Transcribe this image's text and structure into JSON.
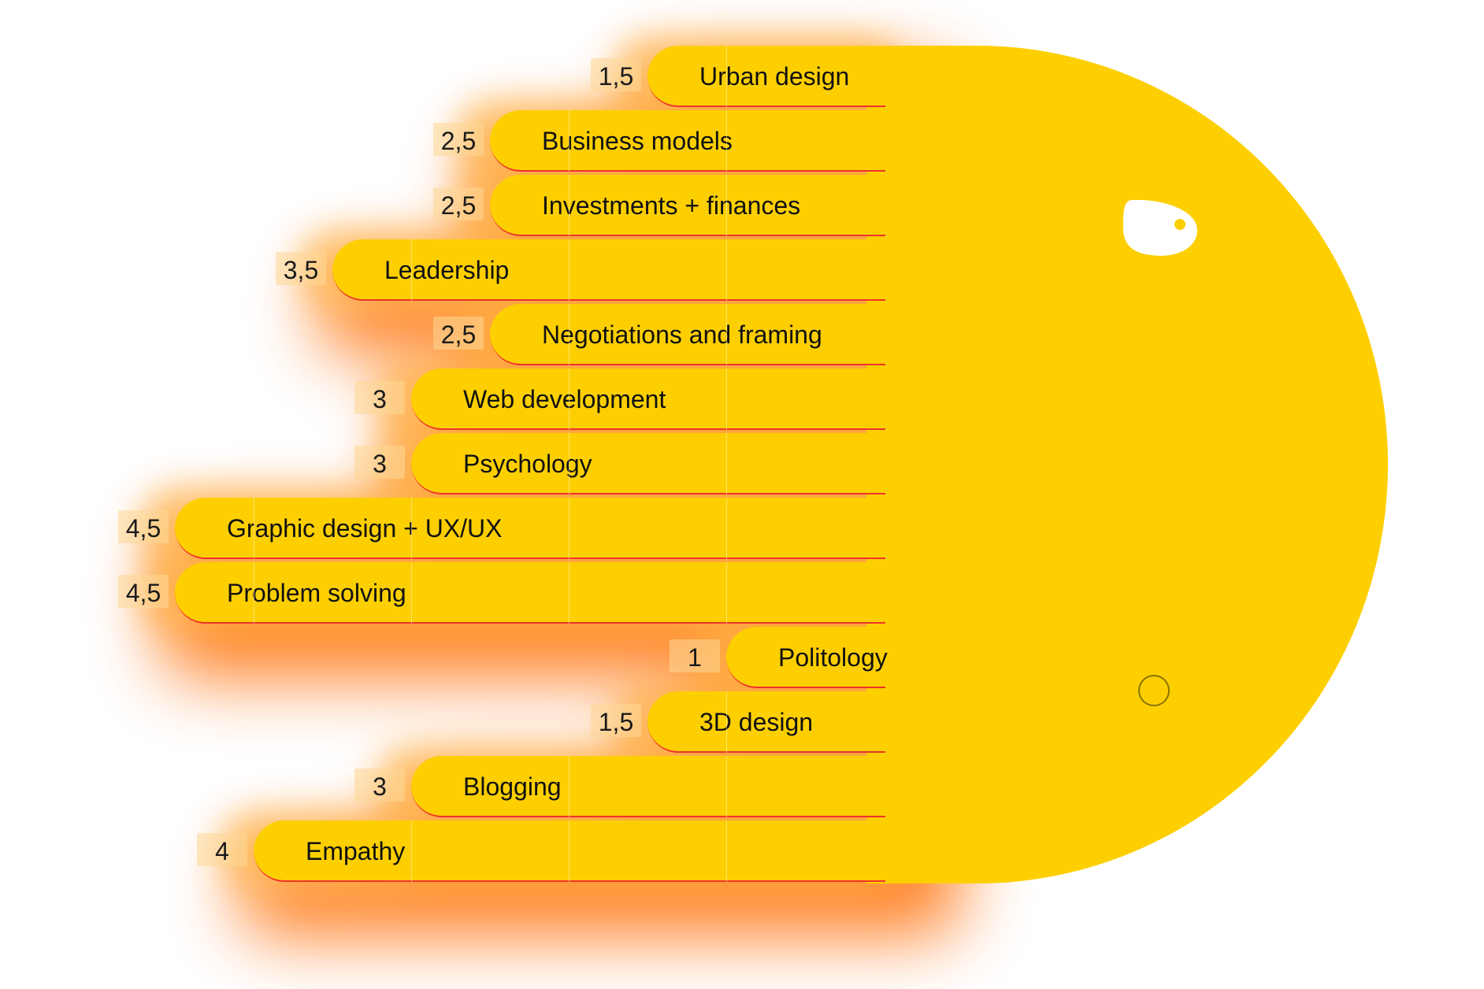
{
  "chart_data": {
    "type": "bar",
    "orientation": "horizontal",
    "categories": [
      "Urban design",
      "Business models",
      "Investments + finances",
      "Leadership",
      "Negotiations and framing",
      "Web development",
      "Psychology",
      "Graphic design + UX/UX",
      "Problem solving",
      "Politology",
      "3D design",
      "Blogging",
      "Empathy"
    ],
    "values": [
      1.5,
      2.5,
      2.5,
      3.5,
      2.5,
      3,
      3,
      4.5,
      4.5,
      1,
      1.5,
      3,
      4
    ],
    "value_labels": [
      "1,5",
      "2,5",
      "2,5",
      "3,5",
      "2,5",
      "3",
      "3",
      "4,5",
      "4,5",
      "1",
      "1,5",
      "3",
      "4"
    ],
    "title": "",
    "xlabel": "",
    "ylabel": "",
    "xlim": [
      0,
      5
    ],
    "grid": true,
    "legend": "none"
  },
  "colors": {
    "bar": "#FDCF00",
    "bar_edge": "#F0332A",
    "glow": "#FF6A00",
    "eye": "#FFFFFF",
    "pupil": "#FDCF00"
  },
  "icons": {
    "eye": "eye-icon",
    "cursor": "cursor-ring-icon"
  }
}
